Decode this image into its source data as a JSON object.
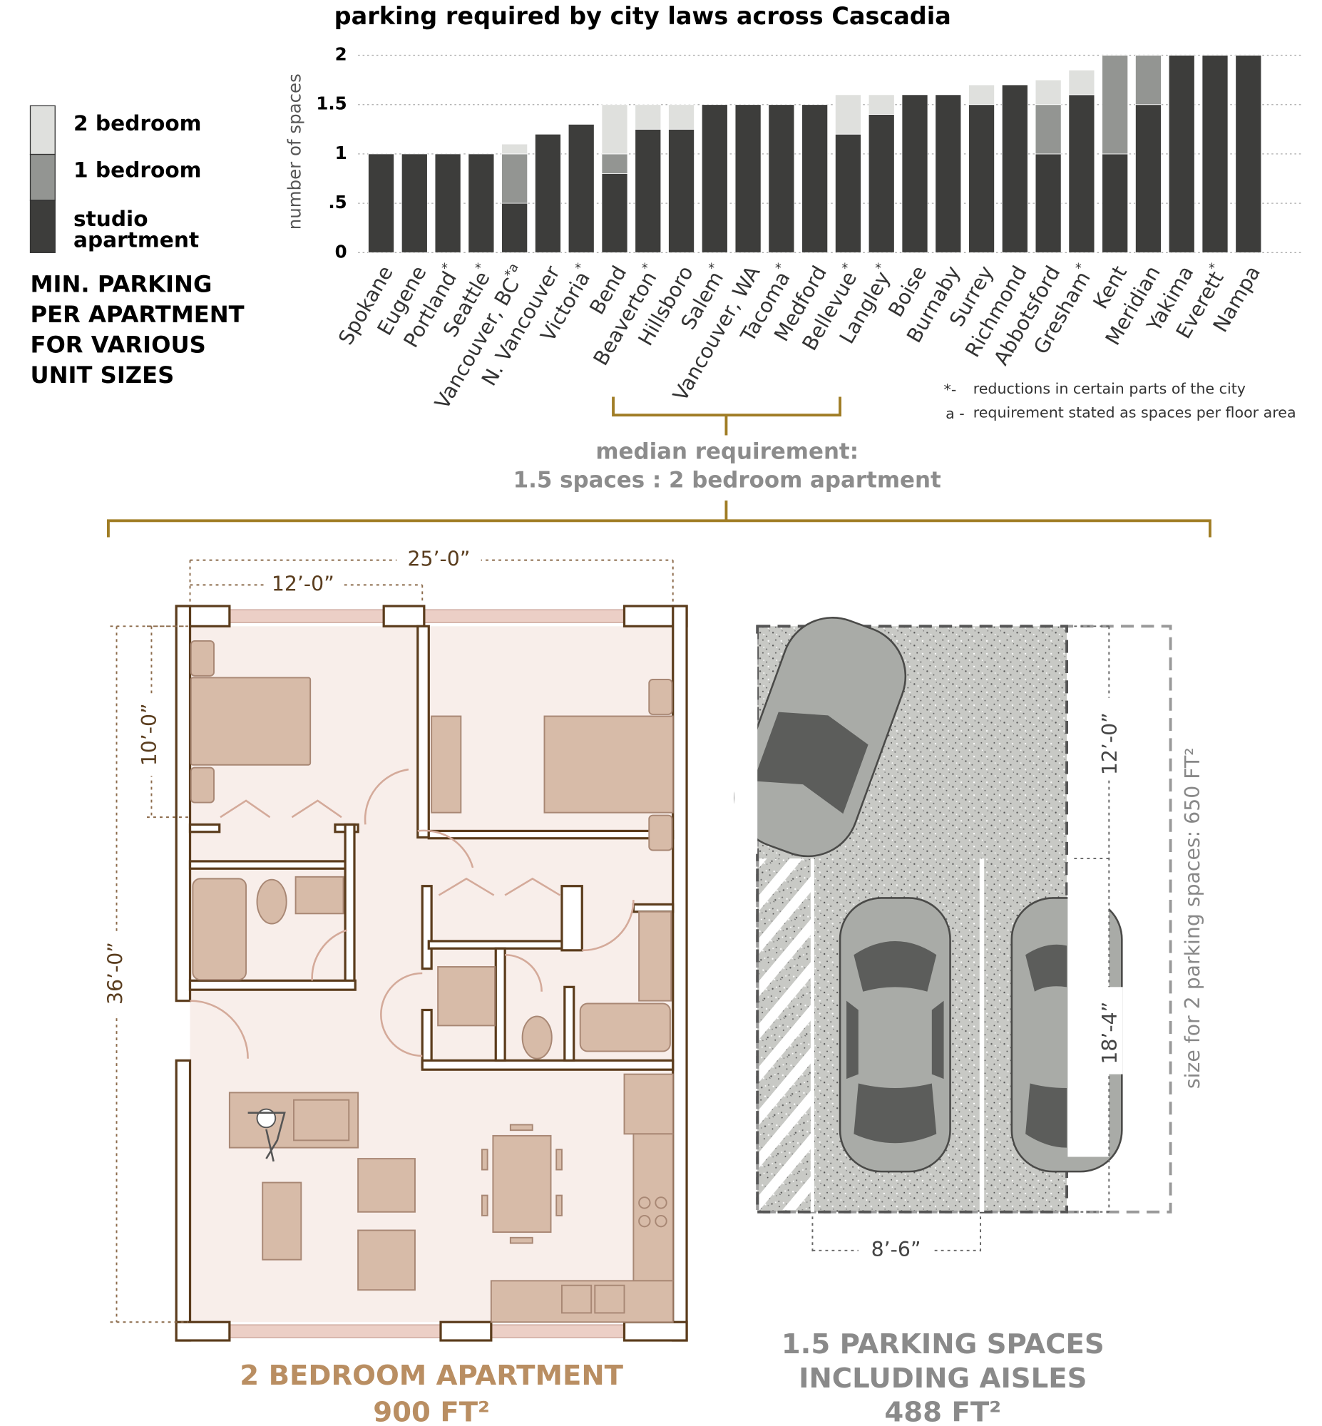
{
  "chart_data": {
    "type": "stacked_bar",
    "title": "parking required by city laws across Cascadia",
    "ylabel": "number of spaces",
    "categories": [
      "Spokane",
      "Eugene",
      "Portland",
      "Seattle",
      "Vancouver, BC",
      "N. Vancouver",
      "Victoria",
      "Bend",
      "Beaverton",
      "Hillsboro",
      "Salem",
      "Vancouver, WA",
      "Tacoma",
      "Medford",
      "Bellevue",
      "Langley",
      "Boise",
      "Burnaby",
      "Surrey",
      "Richmond",
      "Abbotsford",
      "Gresham",
      "Kent",
      "Meridian",
      "Yakima",
      "Everett",
      "Nampa"
    ],
    "category_notes": [
      null,
      null,
      "*",
      "*",
      "*a",
      null,
      "*",
      null,
      "*",
      null,
      "*",
      null,
      "*",
      null,
      "*",
      "*",
      null,
      null,
      null,
      null,
      null,
      "*",
      null,
      null,
      null,
      "*",
      null
    ],
    "series": [
      {
        "name": "studio apartment",
        "color": "#3d3d3b",
        "values": [
          1,
          1,
          1,
          1,
          0.5,
          1.2,
          1.3,
          0.8,
          1.25,
          1.25,
          1.5,
          1.5,
          1.5,
          1.5,
          1.2,
          1.4,
          1.6,
          1.6,
          1.5,
          1.7,
          1,
          1.6,
          1,
          1.5,
          2,
          2,
          2
        ]
      },
      {
        "name": "1 bedroom",
        "color": "#939592",
        "values": [
          0,
          0,
          0,
          0,
          0.5,
          0,
          0,
          0.2,
          0,
          0,
          0,
          0,
          0,
          0,
          0,
          0,
          0,
          0,
          0,
          0,
          0.5,
          0,
          1,
          0.5,
          0,
          0,
          0
        ]
      },
      {
        "name": "2 bedroom",
        "color": "#dfe0dd",
        "values": [
          0,
          0,
          0,
          0,
          0.1,
          0,
          0,
          0.5,
          0.25,
          0.25,
          0,
          0,
          0,
          0,
          0.4,
          0.2,
          0,
          0,
          0.2,
          0,
          0.25,
          0.25,
          0,
          0,
          0,
          0,
          0
        ]
      }
    ],
    "ylim": [
      0,
      2
    ],
    "yticks": [
      0,
      {
        "value": 0.5,
        "label": ".5"
      },
      1,
      1.5,
      2
    ],
    "grid": true,
    "footnotes": [
      {
        "symbol": "*-",
        "text": "reductions in certain parts of the city"
      },
      {
        "symbol": "a -",
        "text": "requirement stated as spaces per floor area"
      }
    ]
  },
  "side_heading": [
    "MIN. PARKING",
    "PER APARTMENT",
    "FOR VARIOUS",
    "UNIT SIZES"
  ],
  "median": [
    "median requirement:",
    "1.5 spaces : 2 bedroom apartment"
  ],
  "floor_plan": {
    "width": "25’-0”",
    "room_width": "12’-0”",
    "room_depth": "10’-0”",
    "depth": "36’-0”",
    "caption": [
      "2 BEDROOM APARTMENT",
      "900 FT²"
    ]
  },
  "parking": {
    "aisle": "12’-0”",
    "stall_length": "18’-4”",
    "stall_width": "8’-6”",
    "total": "size for 2 parking spaces: 650 FT²",
    "caption": [
      "1.5 PARKING SPACES",
      "INCLUDING AISLES",
      "488 FT²"
    ]
  }
}
